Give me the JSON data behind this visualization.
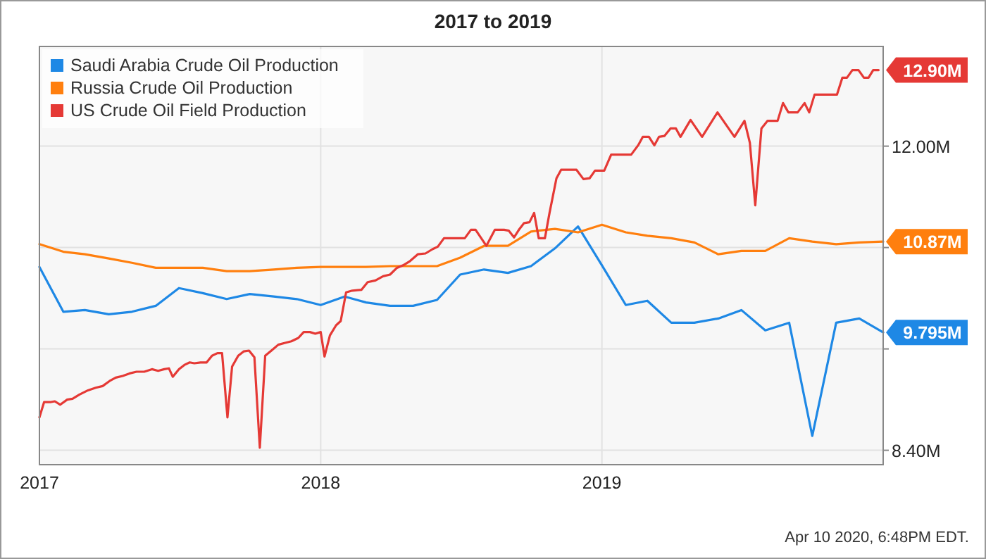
{
  "chart_data": {
    "type": "line",
    "title": "2017 to 2019",
    "x": [
      "2017-01-01",
      "2017-02-01",
      "2017-03-01",
      "2017-04-01",
      "2017-05-01",
      "2017-06-01",
      "2017-07-01",
      "2017-08-01",
      "2017-09-01",
      "2017-10-01",
      "2017-11-01",
      "2017-12-01",
      "2018-01-01",
      "2018-02-01",
      "2018-03-01",
      "2018-04-01",
      "2018-05-01",
      "2018-06-01",
      "2018-07-01",
      "2018-08-01",
      "2018-09-01",
      "2018-10-01",
      "2018-11-01",
      "2018-12-01",
      "2019-01-01",
      "2019-02-01",
      "2019-03-01",
      "2019-04-01",
      "2019-05-01",
      "2019-06-01",
      "2019-07-01",
      "2019-08-01",
      "2019-09-01",
      "2019-10-01",
      "2019-11-01",
      "2019-12-01",
      "2020-01-01"
    ],
    "series": [
      {
        "name": "Saudi Arabia Crude Oil Production",
        "color": "#1e88e5",
        "values": [
          10.57,
          10.04,
          10.06,
          10.01,
          10.04,
          10.11,
          10.32,
          10.26,
          10.19,
          10.25,
          10.22,
          10.19,
          10.12,
          10.22,
          10.15,
          10.11,
          10.11,
          10.18,
          10.48,
          10.54,
          10.5,
          10.58,
          10.79,
          11.05,
          10.59,
          10.12,
          10.17,
          9.91,
          9.91,
          9.96,
          10.06,
          9.82,
          9.91,
          8.57,
          9.91,
          9.96,
          9.795
        ]
      },
      {
        "name": "Russia Crude Oil Production",
        "color": "#ff7f0e",
        "values": [
          10.84,
          10.75,
          10.72,
          10.67,
          10.62,
          10.56,
          10.56,
          10.56,
          10.52,
          10.52,
          10.54,
          10.56,
          10.57,
          10.57,
          10.57,
          10.58,
          10.58,
          10.58,
          10.68,
          10.82,
          10.82,
          10.99,
          11.02,
          10.98,
          11.07,
          10.98,
          10.94,
          10.91,
          10.86,
          10.72,
          10.76,
          10.76,
          10.91,
          10.87,
          10.84,
          10.86,
          10.87
        ]
      },
      {
        "name": "US Crude Oil Field Production",
        "color": "#e53935",
        "x": [
          "2017-01-01",
          "2017-01-07",
          "2017-01-15",
          "2017-01-21",
          "2017-01-28",
          "2017-02-06",
          "2017-02-13",
          "2017-02-22",
          "2017-03-05",
          "2017-03-15",
          "2017-03-24",
          "2017-04-02",
          "2017-04-10",
          "2017-04-19",
          "2017-04-28",
          "2017-05-07",
          "2017-05-17",
          "2017-05-27",
          "2017-06-04",
          "2017-06-12",
          "2017-06-18",
          "2017-06-23",
          "2017-07-01",
          "2017-07-08",
          "2017-07-15",
          "2017-07-21",
          "2017-07-29",
          "2017-08-06",
          "2017-08-13",
          "2017-08-20",
          "2017-08-26",
          "2017-09-02",
          "2017-09-08",
          "2017-09-16",
          "2017-09-23",
          "2017-09-30",
          "2017-10-07",
          "2017-10-14",
          "2017-10-21",
          "2017-10-29",
          "2017-11-07",
          "2017-11-15",
          "2017-11-24",
          "2017-12-03",
          "2017-12-10",
          "2017-12-18",
          "2017-12-25",
          "2018-01-01",
          "2018-01-06",
          "2018-01-13",
          "2018-01-21",
          "2018-01-27",
          "2018-02-03",
          "2018-02-11",
          "2018-02-23",
          "2018-03-03",
          "2018-03-13",
          "2018-03-23",
          "2018-04-01",
          "2018-04-10",
          "2018-04-18",
          "2018-04-27",
          "2018-05-07",
          "2018-05-17",
          "2018-05-26",
          "2018-06-02",
          "2018-06-10",
          "2018-06-23",
          "2018-07-07",
          "2018-07-15",
          "2018-07-21",
          "2018-08-04",
          "2018-08-15",
          "2018-08-27",
          "2018-09-02",
          "2018-09-09",
          "2018-09-16",
          "2018-09-22",
          "2018-09-29",
          "2018-10-05",
          "2018-10-11",
          "2018-10-19",
          "2018-10-25",
          "2018-11-03",
          "2018-11-09",
          "2018-11-18",
          "2018-11-29",
          "2018-12-08",
          "2018-12-16",
          "2018-12-23",
          "2019-01-04",
          "2019-01-13",
          "2019-01-25",
          "2019-02-08",
          "2019-02-17",
          "2019-02-23",
          "2019-03-03",
          "2019-03-10",
          "2019-03-16",
          "2019-03-23",
          "2019-03-31",
          "2019-04-07",
          "2019-04-13",
          "2019-04-26",
          "2019-05-11",
          "2019-05-31",
          "2019-06-22",
          "2019-07-05",
          "2019-07-12",
          "2019-07-19",
          "2019-07-27",
          "2019-08-04",
          "2019-08-17",
          "2019-08-24",
          "2019-08-31",
          "2019-09-12",
          "2019-09-21",
          "2019-09-27",
          "2019-10-04",
          "2019-10-15",
          "2019-11-02",
          "2019-11-09",
          "2019-11-15",
          "2019-11-22",
          "2019-11-30",
          "2019-12-07",
          "2019-12-13",
          "2019-12-19",
          "2019-12-26"
        ],
        "values": [
          8.79,
          8.97,
          8.97,
          8.98,
          8.94,
          9.0,
          9.01,
          9.06,
          9.11,
          9.14,
          9.16,
          9.22,
          9.26,
          9.28,
          9.31,
          9.33,
          9.33,
          9.36,
          9.34,
          9.36,
          9.37,
          9.27,
          9.36,
          9.41,
          9.44,
          9.43,
          9.44,
          9.44,
          9.52,
          9.55,
          9.55,
          8.79,
          9.39,
          9.52,
          9.57,
          9.58,
          9.5,
          8.43,
          9.52,
          9.58,
          9.65,
          9.67,
          9.69,
          9.73,
          9.8,
          9.8,
          9.78,
          9.8,
          9.51,
          9.76,
          9.88,
          9.93,
          10.27,
          10.29,
          10.3,
          10.39,
          10.41,
          10.46,
          10.48,
          10.56,
          10.59,
          10.64,
          10.72,
          10.73,
          10.78,
          10.81,
          10.91,
          10.91,
          10.91,
          11.01,
          11.01,
          10.82,
          11.01,
          11.01,
          11.0,
          10.92,
          11.02,
          11.09,
          11.1,
          11.21,
          10.91,
          10.91,
          11.21,
          11.62,
          11.72,
          11.72,
          11.72,
          11.61,
          11.62,
          11.71,
          11.71,
          11.9,
          11.9,
          11.9,
          12.01,
          12.11,
          12.11,
          12.01,
          12.11,
          12.12,
          12.21,
          12.21,
          12.11,
          12.31,
          12.11,
          12.4,
          12.11,
          12.3,
          12.04,
          11.3,
          12.21,
          12.3,
          12.3,
          12.51,
          12.4,
          12.4,
          12.51,
          12.4,
          12.61,
          12.61,
          12.61,
          12.81,
          12.81,
          12.9,
          12.9,
          12.81,
          12.81,
          12.9,
          12.9
        ]
      }
    ],
    "xlim": [
      "2017-01-01",
      "2020-01-01"
    ],
    "xticks": [
      {
        "value": "2017-01-01",
        "label": "2017"
      },
      {
        "value": "2018-01-01",
        "label": "2018"
      },
      {
        "value": "2019-01-01",
        "label": "2019"
      }
    ],
    "ylim": [
      8.23,
      13.18
    ],
    "yticks": [
      {
        "value": 8.4,
        "label": "8.40M"
      },
      {
        "value": 9.6,
        "label": null
      },
      {
        "value": 10.8,
        "label": null
      },
      {
        "value": 12,
        "label": "12.00M"
      }
    ],
    "grid": true,
    "legend": "top left",
    "marker": "none",
    "line_style": "solid",
    "annotations": [
      {
        "text": "12.90M",
        "x": "2019-12-26",
        "y": 12.9
      },
      {
        "text": "10.87M",
        "x": "2020-01-01",
        "y": 10.87
      },
      {
        "text": "9.795M",
        "x": "2020-01-01",
        "y": 9.795
      },
      "Apr 10 2020, 6:48PM EDT."
    ]
  }
}
